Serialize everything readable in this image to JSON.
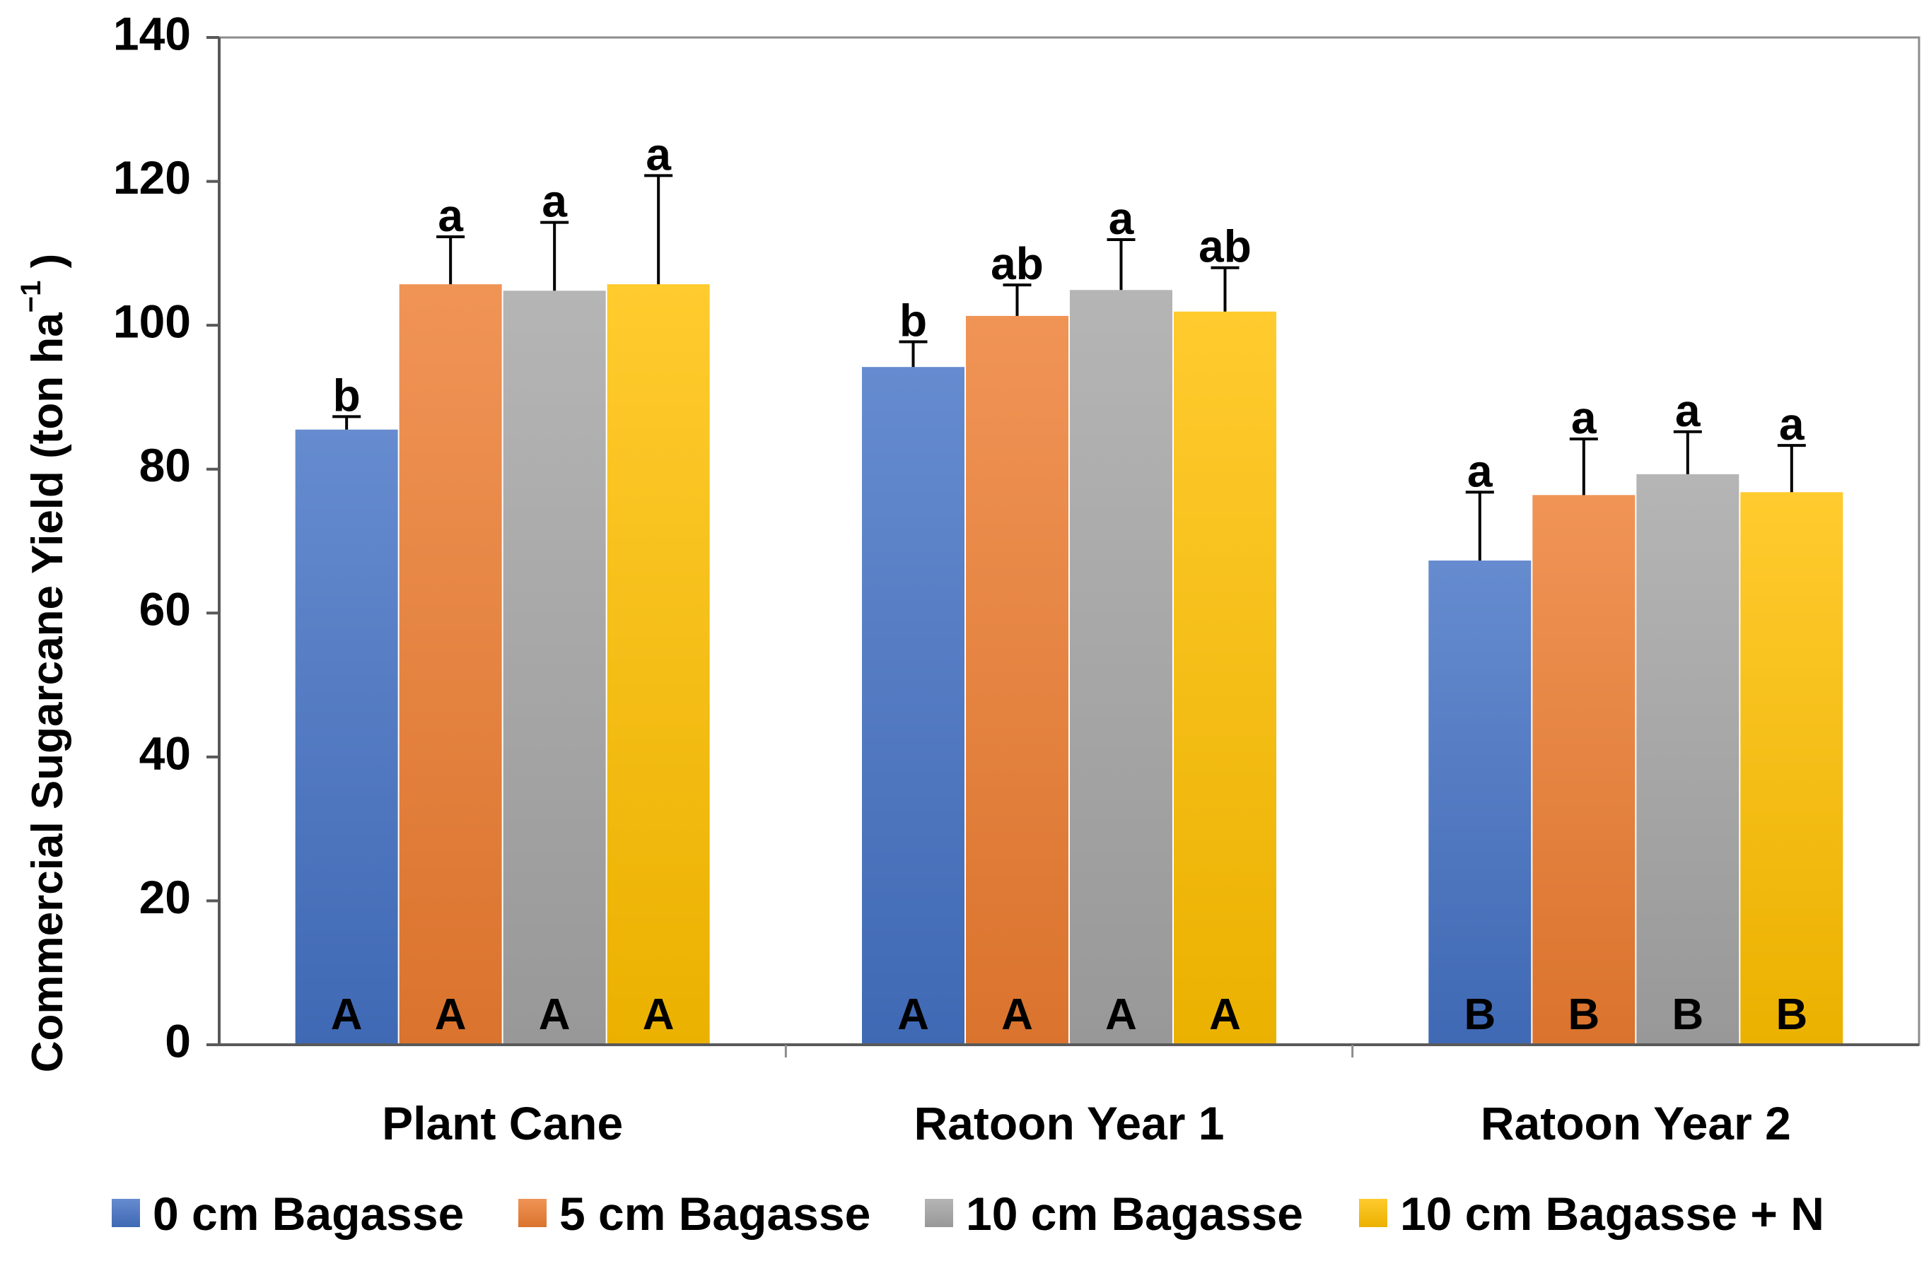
{
  "chart_data": {
    "type": "bar",
    "title": "",
    "xlabel": "",
    "ylabel": "Commercial Sugarcane Yield (ton ha",
    "ylabel_superscript": "−1",
    "ylabel_suffix": " )",
    "ylim": [
      0,
      140
    ],
    "yticks": [
      "0",
      "20",
      "40",
      "60",
      "80",
      "100",
      "120",
      "140"
    ],
    "grid": false,
    "legend_position": "bottom",
    "categories": [
      "Plant Cane",
      "Ratoon Year 1",
      "Ratoon Year 2"
    ],
    "series": [
      {
        "name": "0 cm Bagasse",
        "color": "#4472C4",
        "values": [
          85.5,
          94.2,
          67.3
        ],
        "errors": [
          1.8,
          3.5,
          9.5
        ],
        "sig_upper": [
          "b",
          "b",
          "a"
        ],
        "sig_lower": [
          "A",
          "A",
          "B"
        ]
      },
      {
        "name": "5 cm Bagasse",
        "color": "#ED7D31",
        "values": [
          105.7,
          101.3,
          76.4
        ],
        "errors": [
          6.6,
          4.3,
          7.8
        ],
        "sig_upper": [
          "a",
          "ab",
          "a"
        ],
        "sig_lower": [
          "A",
          "A",
          "B"
        ]
      },
      {
        "name": "10 cm Bagasse",
        "color": "#A5A5A5",
        "values": [
          104.8,
          104.9,
          79.3
        ],
        "errors": [
          9.5,
          7.0,
          5.9
        ],
        "sig_upper": [
          "a",
          "a",
          "a"
        ],
        "sig_lower": [
          "A",
          "A",
          "B"
        ]
      },
      {
        "name": "10 cm Bagasse + N",
        "color": "#FFC000",
        "values": [
          105.7,
          101.9,
          76.8
        ],
        "errors": [
          15.1,
          6.1,
          6.5
        ],
        "sig_upper": [
          "a",
          "ab",
          "a"
        ],
        "sig_lower": [
          "A",
          "A",
          "B"
        ]
      }
    ]
  }
}
